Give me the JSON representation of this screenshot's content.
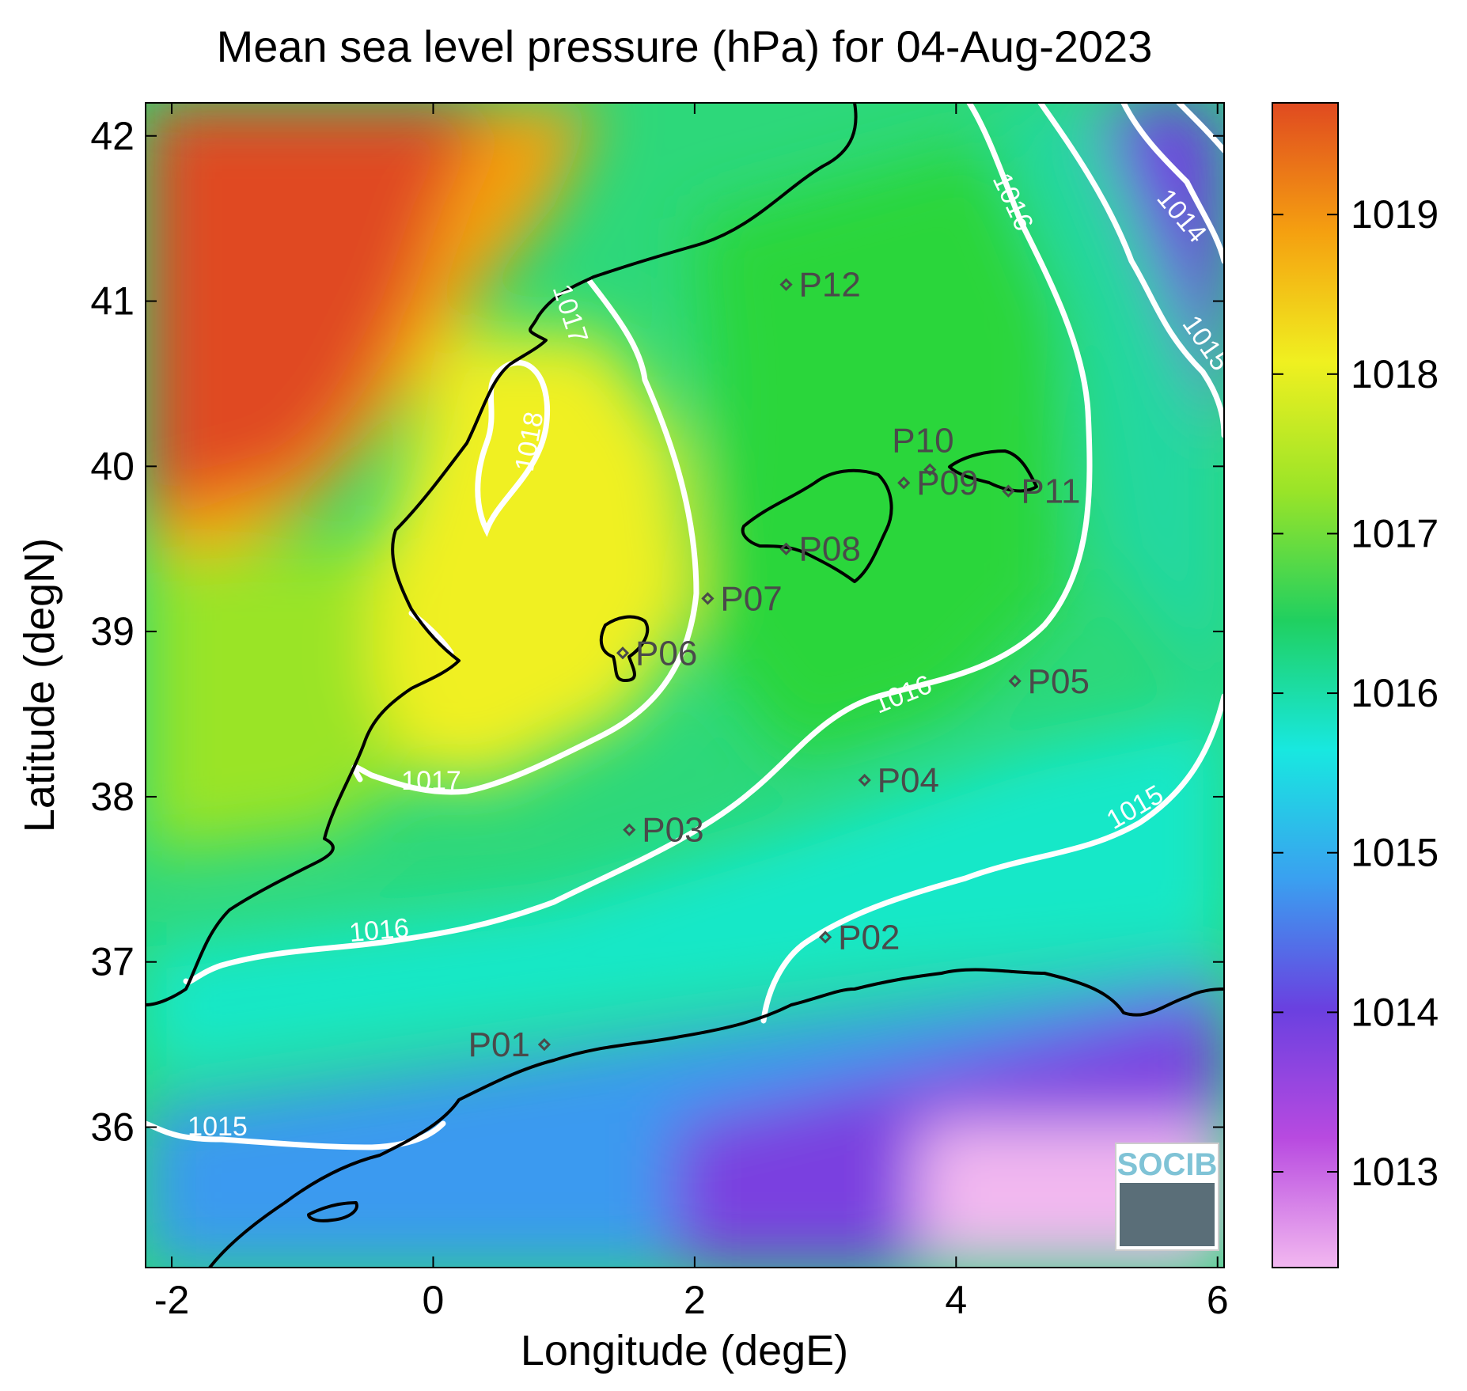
{
  "map": {
    "title": "Mean sea level pressure (hPa) for 04-Aug-2023",
    "xlabel": "Longitude (degE)",
    "ylabel": "Latitude (degN)",
    "x_ticks": [
      "-2",
      "0",
      "2",
      "4",
      "6"
    ],
    "y_ticks": [
      "42",
      "41",
      "40",
      "39",
      "38",
      "37",
      "36"
    ],
    "colorbar": {
      "ticks": [
        "1019",
        "1018",
        "1017",
        "1016",
        "1015",
        "1014",
        "1013"
      ],
      "range": [
        1012.4,
        1019.7
      ],
      "colors": [
        "#f2b8f0",
        "#b84ae0",
        "#6a40e0",
        "#3aa0f0",
        "#18e8e0",
        "#20d060",
        "#9ae428",
        "#f0f020",
        "#f5a010",
        "#e04a20"
      ]
    },
    "contour_labels": [
      "1014",
      "1015",
      "1016",
      "1017",
      "1018",
      "1016",
      "1017",
      "1015",
      "1016",
      "1015"
    ],
    "stations": [
      {
        "name": "P01",
        "lon": 0.85,
        "lat": 36.5
      },
      {
        "name": "P02",
        "lon": 3.0,
        "lat": 37.15
      },
      {
        "name": "P03",
        "lon": 1.5,
        "lat": 37.8
      },
      {
        "name": "P04",
        "lon": 3.3,
        "lat": 38.1
      },
      {
        "name": "P05",
        "lon": 4.45,
        "lat": 38.7
      },
      {
        "name": "P06",
        "lon": 1.45,
        "lat": 38.87
      },
      {
        "name": "P07",
        "lon": 2.1,
        "lat": 39.2
      },
      {
        "name": "P08",
        "lon": 2.7,
        "lat": 39.5
      },
      {
        "name": "P09",
        "lon": 3.6,
        "lat": 39.9
      },
      {
        "name": "P10",
        "lon": 3.8,
        "lat": 39.98
      },
      {
        "name": "P11",
        "lon": 4.4,
        "lat": 39.85
      },
      {
        "name": "P12",
        "lon": 2.7,
        "lat": 41.1
      }
    ],
    "logo_text": "SOCIB"
  }
}
